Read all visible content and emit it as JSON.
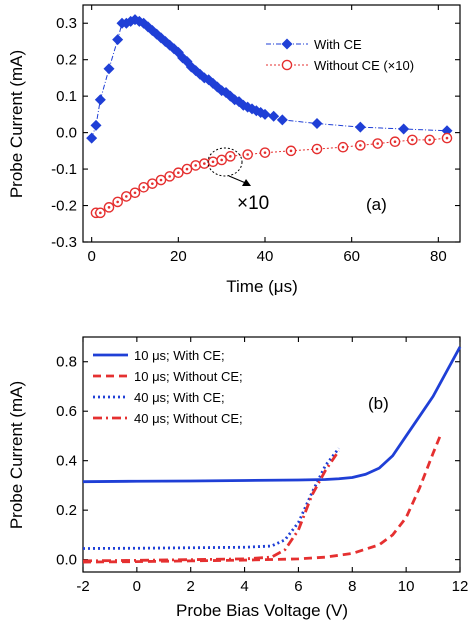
{
  "chart_data": [
    {
      "panel_label": "(a)",
      "type": "line",
      "xlabel": "Time (μs)",
      "ylabel": "Probe Current (mA)",
      "xlim": [
        -2,
        85
      ],
      "ylim": [
        -0.3,
        0.35
      ],
      "xticks": [
        0,
        20,
        40,
        60,
        80
      ],
      "yticks": [
        -0.3,
        -0.2,
        -0.1,
        0.0,
        0.1,
        0.2,
        0.3
      ],
      "ytick_labels": [
        "-0.3",
        "-0.2",
        "-0.1",
        "0.0",
        "0.1",
        "0.2",
        "0.3"
      ],
      "legend_position": "top-right",
      "annotation": "×10",
      "series": [
        {
          "name": "With CE",
          "color": "#1f3fd6",
          "marker": "diamond",
          "x": [
            0,
            1,
            2,
            4,
            6,
            7,
            8,
            9,
            10,
            11,
            12,
            13,
            14,
            15,
            16,
            17,
            18,
            19,
            20,
            21,
            22,
            23,
            24,
            25,
            26,
            27,
            28,
            29,
            30,
            31,
            32,
            33,
            34,
            35,
            36,
            37,
            38,
            39,
            40,
            42,
            44,
            52,
            62,
            72,
            82
          ],
          "y": [
            -0.015,
            0.02,
            0.09,
            0.175,
            0.255,
            0.3,
            0.3,
            0.305,
            0.31,
            0.305,
            0.3,
            0.29,
            0.28,
            0.27,
            0.26,
            0.25,
            0.24,
            0.23,
            0.22,
            0.205,
            0.195,
            0.18,
            0.17,
            0.16,
            0.15,
            0.145,
            0.135,
            0.125,
            0.115,
            0.11,
            0.1,
            0.09,
            0.085,
            0.075,
            0.07,
            0.065,
            0.06,
            0.055,
            0.05,
            0.045,
            0.035,
            0.025,
            0.015,
            0.01,
            0.005
          ]
        },
        {
          "name": "Without CE (×10)",
          "color": "#e53030",
          "marker": "circle",
          "x": [
            1,
            2,
            4,
            6,
            8,
            10,
            12,
            14,
            16,
            18,
            20,
            22,
            24,
            26,
            28,
            30,
            32,
            36,
            40,
            46,
            52,
            58,
            62,
            66,
            70,
            74,
            78,
            82
          ],
          "y": [
            -0.22,
            -0.22,
            -0.205,
            -0.19,
            -0.175,
            -0.165,
            -0.15,
            -0.14,
            -0.13,
            -0.12,
            -0.11,
            -0.1,
            -0.09,
            -0.085,
            -0.08,
            -0.075,
            -0.065,
            -0.06,
            -0.055,
            -0.05,
            -0.045,
            -0.04,
            -0.035,
            -0.03,
            -0.025,
            -0.02,
            -0.02,
            -0.015
          ]
        }
      ]
    },
    {
      "panel_label": "(b)",
      "type": "line",
      "xlabel": "Probe Bias Voltage (V)",
      "ylabel": "Probe Current (mA)",
      "xlim": [
        -2,
        12
      ],
      "ylim": [
        -0.05,
        0.9
      ],
      "xticks": [
        -2,
        0,
        2,
        4,
        6,
        8,
        10,
        12
      ],
      "yticks": [
        0.0,
        0.2,
        0.4,
        0.6,
        0.8
      ],
      "ytick_labels": [
        "0.0",
        "0.2",
        "0.4",
        "0.6",
        "0.8"
      ],
      "legend_position": "top-left",
      "series": [
        {
          "name": "10 μs; With CE;",
          "color": "#1f3fd6",
          "dash": "solid",
          "x": [
            -2,
            0,
            2,
            4,
            6,
            7,
            7.5,
            8,
            8.5,
            9,
            9.5,
            10,
            10.5,
            11,
            11.5,
            12
          ],
          "y": [
            0.315,
            0.317,
            0.318,
            0.32,
            0.322,
            0.324,
            0.327,
            0.332,
            0.345,
            0.37,
            0.42,
            0.5,
            0.58,
            0.66,
            0.76,
            0.86
          ]
        },
        {
          "name": "10 μs; Without CE;",
          "color": "#e53030",
          "dash": "dashed",
          "x": [
            -2,
            0,
            2,
            4,
            6,
            7,
            8,
            9,
            9.5,
            10,
            10.5,
            11,
            11.3
          ],
          "y": [
            -0.01,
            -0.008,
            -0.005,
            -0.002,
            0.003,
            0.01,
            0.025,
            0.06,
            0.1,
            0.17,
            0.29,
            0.43,
            0.51
          ]
        },
        {
          "name": "40 μs; With CE;",
          "color": "#1f3fd6",
          "dash": "dotted",
          "x": [
            -2,
            0,
            2,
            4,
            5,
            5.5,
            6,
            6.5,
            7,
            7.5
          ],
          "y": [
            0.045,
            0.046,
            0.048,
            0.05,
            0.055,
            0.08,
            0.15,
            0.27,
            0.38,
            0.45
          ]
        },
        {
          "name": "40 μs; Without CE;",
          "color": "#e53030",
          "dash": "dashdot",
          "x": [
            -2,
            0,
            2,
            4,
            5,
            5.5,
            6,
            6.5,
            7,
            7.5
          ],
          "y": [
            -0.005,
            -0.003,
            0.0,
            0.003,
            0.01,
            0.04,
            0.12,
            0.26,
            0.36,
            0.44
          ]
        }
      ]
    }
  ]
}
